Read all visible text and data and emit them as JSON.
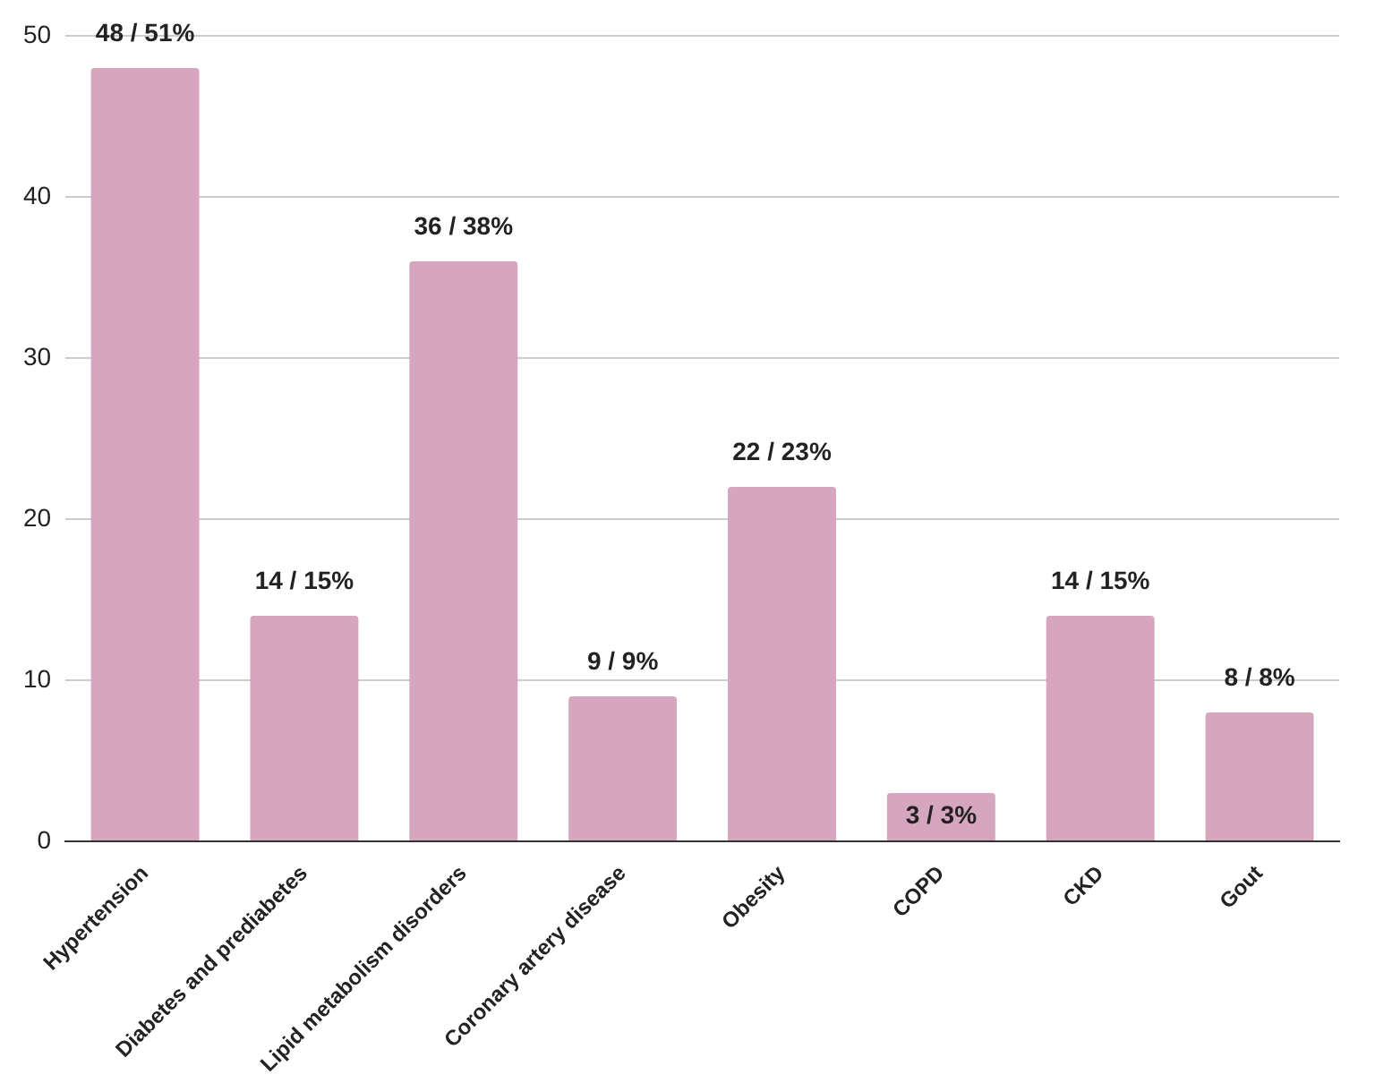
{
  "chart_data": {
    "type": "bar",
    "categories": [
      "Hypertension",
      "Diabetes and prediabetes",
      "Lipid metabolism disorders",
      "Coronary artery disease",
      "Obesity",
      "COPD",
      "CKD",
      "Gout"
    ],
    "values": [
      48,
      14,
      36,
      9,
      22,
      3,
      14,
      8
    ],
    "value_labels": [
      "48 / 51%",
      "14 / 15%",
      "36 / 38%",
      "9 / 9%",
      "22 / 23%",
      "3 / 3%",
      "14 / 15%",
      "8 / 8%"
    ],
    "color": "#d5a6bd",
    "ylim": [
      0,
      50
    ],
    "yticks": [
      0,
      10,
      20,
      30,
      40,
      50
    ],
    "grid": "y",
    "legend": false
  }
}
